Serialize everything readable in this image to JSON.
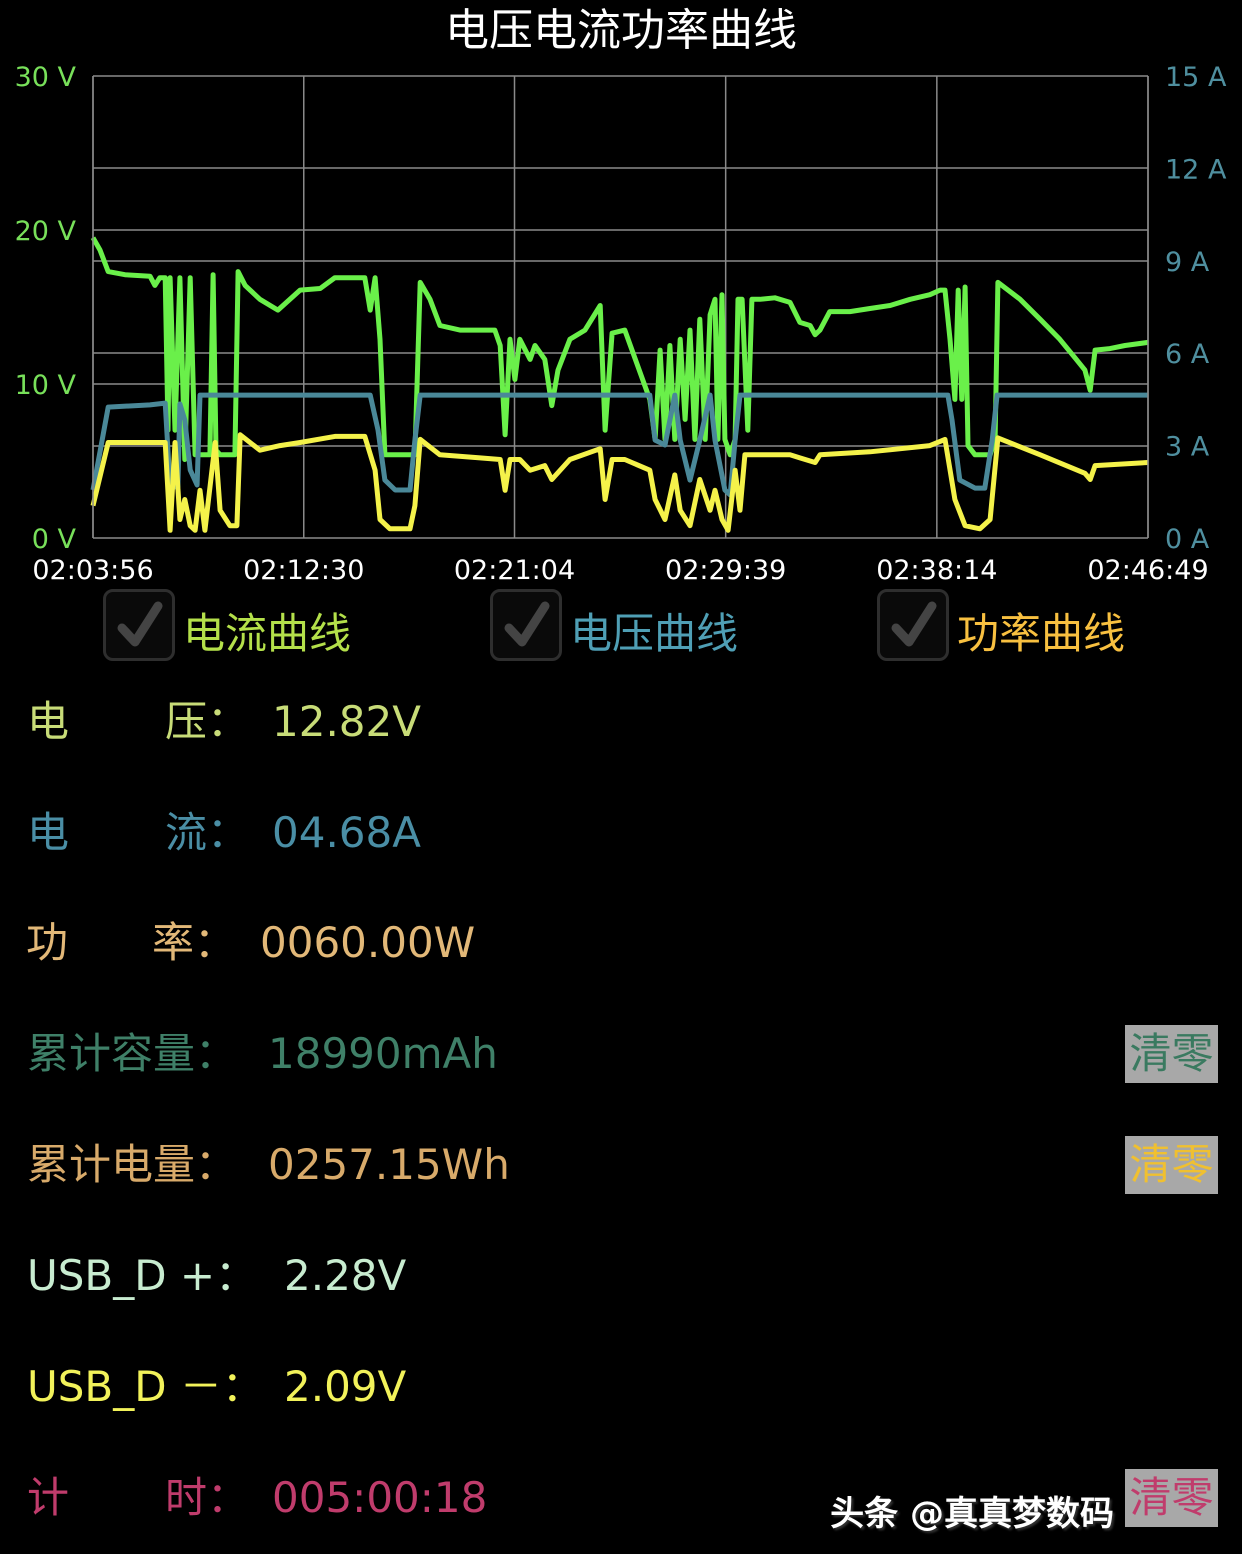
{
  "title": "电压电流功率曲线",
  "colors": {
    "green_series": "#6af04a",
    "teal_series": "#4a8898",
    "yellow_series": "#f4f24a",
    "left_axis": "#78e05a",
    "right_axis": "#4f8f9f",
    "grid": "#8a8a8a"
  },
  "chart_data": {
    "type": "line",
    "title": "电压电流功率曲线",
    "x_ticks": [
      "02:03:56",
      "02:12:30",
      "02:21:04",
      "02:29:39",
      "02:38:14",
      "02:46:49"
    ],
    "xlim": [
      "02:03:56",
      "02:46:49"
    ],
    "left_axis": {
      "ticks": [
        "30 V",
        "20 V",
        "10 V",
        "0 V"
      ],
      "ylim": [
        0,
        30
      ]
    },
    "right_axis": {
      "ticks": [
        "15 A",
        "12 A",
        "9 A",
        "6 A",
        "3 A",
        "0 A"
      ],
      "ylim": [
        0,
        15
      ]
    },
    "grid": true,
    "series": [
      {
        "color": "green",
        "axis": "left",
        "points": [
          [
            "02:03:56",
            19.5
          ],
          [
            "02:04:13",
            18.7
          ],
          [
            "02:04:33",
            17.3
          ],
          [
            "02:05:14",
            17.1
          ],
          [
            "02:06:15",
            17.0
          ],
          [
            "02:06:27",
            16.4
          ],
          [
            "02:06:39",
            16.9
          ],
          [
            "02:06:52",
            16.9
          ],
          [
            "02:06:59",
            7.0
          ],
          [
            "02:07:04",
            16.9
          ],
          [
            "02:07:16",
            7.0
          ],
          [
            "02:07:28",
            16.9
          ],
          [
            "02:07:40",
            5.1
          ],
          [
            "02:07:53",
            16.9
          ],
          [
            "02:08:05",
            5.4
          ],
          [
            "02:08:41",
            5.4
          ],
          [
            "02:08:49",
            17.1
          ],
          [
            "02:08:56",
            5.7
          ],
          [
            "02:09:06",
            5.4
          ],
          [
            "02:09:42",
            5.4
          ],
          [
            "02:09:50",
            17.3
          ],
          [
            "02:10:07",
            16.4
          ],
          [
            "02:10:43",
            15.5
          ],
          [
            "02:11:27",
            14.8
          ],
          [
            "02:12:21",
            16.1
          ],
          [
            "02:13:10",
            16.2
          ],
          [
            "02:13:46",
            16.9
          ],
          [
            "02:14:59",
            16.9
          ],
          [
            "02:15:12",
            14.8
          ],
          [
            "02:15:24",
            16.9
          ],
          [
            "02:15:36",
            12.9
          ],
          [
            "02:15:48",
            5.4
          ],
          [
            "02:17:01",
            5.4
          ],
          [
            "02:17:14",
            16.6
          ],
          [
            "02:17:38",
            15.5
          ],
          [
            "02:18:02",
            13.8
          ],
          [
            "02:18:51",
            13.5
          ],
          [
            "02:20:16",
            13.5
          ],
          [
            "02:20:29",
            12.5
          ],
          [
            "02:20:41",
            6.7
          ],
          [
            "02:20:53",
            12.9
          ],
          [
            "02:21:05",
            10.3
          ],
          [
            "02:21:17",
            12.9
          ],
          [
            "02:21:42",
            11.6
          ],
          [
            "02:21:54",
            12.5
          ],
          [
            "02:22:18",
            11.6
          ],
          [
            "02:22:35",
            8.6
          ],
          [
            "02:22:50",
            10.9
          ],
          [
            "02:23:19",
            12.9
          ],
          [
            "02:23:56",
            13.5
          ],
          [
            "02:24:33",
            15.1
          ],
          [
            "02:24:45",
            7.0
          ],
          [
            "02:25:02",
            13.3
          ],
          [
            "02:25:33",
            13.5
          ],
          [
            "02:26:34",
            9.0
          ],
          [
            "02:26:47",
            6.4
          ],
          [
            "02:26:59",
            12.2
          ],
          [
            "02:27:11",
            6.4
          ],
          [
            "02:27:23",
            12.5
          ],
          [
            "02:27:35",
            6.4
          ],
          [
            "02:27:48",
            12.9
          ],
          [
            "02:28:00",
            7.7
          ],
          [
            "02:28:12",
            13.5
          ],
          [
            "02:28:24",
            6.4
          ],
          [
            "02:28:36",
            14.2
          ],
          [
            "02:28:49",
            6.4
          ],
          [
            "02:29:01",
            14.5
          ],
          [
            "02:29:13",
            15.5
          ],
          [
            "02:29:20",
            6.4
          ],
          [
            "02:29:30",
            15.8
          ],
          [
            "02:29:37",
            6.4
          ],
          [
            "02:29:50",
            5.4
          ],
          [
            "02:30:02",
            6.4
          ],
          [
            "02:30:09",
            15.5
          ],
          [
            "02:30:19",
            15.5
          ],
          [
            "02:30:33",
            7.0
          ],
          [
            "02:30:43",
            15.5
          ],
          [
            "02:31:03",
            15.5
          ],
          [
            "02:31:39",
            15.6
          ],
          [
            "02:32:16",
            15.3
          ],
          [
            "02:32:40",
            14.0
          ],
          [
            "02:33:05",
            13.8
          ],
          [
            "02:33:17",
            13.2
          ],
          [
            "02:33:29",
            13.5
          ],
          [
            "02:33:53",
            14.7
          ],
          [
            "02:34:42",
            14.7
          ],
          [
            "02:35:31",
            14.9
          ],
          [
            "02:36:20",
            15.1
          ],
          [
            "02:37:09",
            15.5
          ],
          [
            "02:37:57",
            15.8
          ],
          [
            "02:38:22",
            16.1
          ],
          [
            "02:38:34",
            16.1
          ],
          [
            "02:38:46",
            12.9
          ],
          [
            "02:38:58",
            9.0
          ],
          [
            "02:39:06",
            16.1
          ],
          [
            "02:39:15",
            9.0
          ],
          [
            "02:39:23",
            16.3
          ],
          [
            "02:39:30",
            6.0
          ],
          [
            "02:39:47",
            5.4
          ],
          [
            "02:40:24",
            5.4
          ],
          [
            "02:40:36",
            6.4
          ],
          [
            "02:40:43",
            16.6
          ],
          [
            "02:41:37",
            15.5
          ],
          [
            "02:42:26",
            14.2
          ],
          [
            "02:43:14",
            12.9
          ],
          [
            "02:43:51",
            11.7
          ],
          [
            "02:44:15",
            10.9
          ],
          [
            "02:44:28",
            9.6
          ],
          [
            "02:44:40",
            12.2
          ],
          [
            "02:45:16",
            12.3
          ],
          [
            "02:45:53",
            12.5
          ],
          [
            "02:46:49",
            12.7
          ]
        ]
      },
      {
        "color": "teal",
        "axis": "right",
        "points": [
          [
            "02:03:56",
            1.56
          ],
          [
            "02:04:33",
            4.25
          ],
          [
            "02:06:15",
            4.32
          ],
          [
            "02:06:52",
            4.38
          ],
          [
            "02:07:04",
            1.66
          ],
          [
            "02:07:23",
            1.66
          ],
          [
            "02:07:28",
            4.35
          ],
          [
            "02:07:40",
            3.83
          ],
          [
            "02:07:53",
            2.21
          ],
          [
            "02:08:10",
            1.72
          ],
          [
            "02:08:17",
            4.64
          ],
          [
            "02:15:12",
            4.64
          ],
          [
            "02:15:31",
            3.51
          ],
          [
            "02:15:48",
            1.88
          ],
          [
            "02:16:13",
            1.56
          ],
          [
            "02:16:49",
            1.56
          ],
          [
            "02:17:01",
            3.18
          ],
          [
            "02:17:14",
            4.64
          ],
          [
            "02:26:34",
            4.64
          ],
          [
            "02:26:47",
            3.18
          ],
          [
            "02:27:11",
            3.02
          ],
          [
            "02:27:35",
            4.64
          ],
          [
            "02:27:48",
            3.18
          ],
          [
            "02:28:12",
            1.88
          ],
          [
            "02:28:36",
            3.18
          ],
          [
            "02:29:01",
            4.64
          ],
          [
            "02:29:13",
            3.18
          ],
          [
            "02:29:37",
            1.56
          ],
          [
            "02:29:50",
            1.4
          ],
          [
            "02:30:02",
            3.18
          ],
          [
            "02:30:14",
            4.64
          ],
          [
            "02:38:41",
            4.64
          ],
          [
            "02:38:51",
            3.83
          ],
          [
            "02:39:10",
            1.88
          ],
          [
            "02:39:47",
            1.62
          ],
          [
            "02:40:11",
            1.62
          ],
          [
            "02:40:29",
            3.18
          ],
          [
            "02:40:41",
            4.64
          ],
          [
            "02:46:49",
            4.64
          ]
        ]
      },
      {
        "color": "yellow",
        "axis": "left",
        "points": [
          [
            "02:03:56",
            2.1
          ],
          [
            "02:04:33",
            6.2
          ],
          [
            "02:06:52",
            6.2
          ],
          [
            "02:07:04",
            0.5
          ],
          [
            "02:07:16",
            6.2
          ],
          [
            "02:07:28",
            1.2
          ],
          [
            "02:07:40",
            2.5
          ],
          [
            "02:07:53",
            0.8
          ],
          [
            "02:08:05",
            0.5
          ],
          [
            "02:08:17",
            3.1
          ],
          [
            "02:08:29",
            0.5
          ],
          [
            "02:08:54",
            6.2
          ],
          [
            "02:09:06",
            1.8
          ],
          [
            "02:09:30",
            0.8
          ],
          [
            "02:09:47",
            0.8
          ],
          [
            "02:09:55",
            6.7
          ],
          [
            "02:10:43",
            5.7
          ],
          [
            "02:11:32",
            6.0
          ],
          [
            "02:12:21",
            6.2
          ],
          [
            "02:13:46",
            6.6
          ],
          [
            "02:14:59",
            6.6
          ],
          [
            "02:15:24",
            4.4
          ],
          [
            "02:15:36",
            1.2
          ],
          [
            "02:16:00",
            0.6
          ],
          [
            "02:16:49",
            0.6
          ],
          [
            "02:17:01",
            2.1
          ],
          [
            "02:17:14",
            6.4
          ],
          [
            "02:18:02",
            5.4
          ],
          [
            "02:19:40",
            5.2
          ],
          [
            "02:20:29",
            5.1
          ],
          [
            "02:20:41",
            3.1
          ],
          [
            "02:20:53",
            5.1
          ],
          [
            "02:21:17",
            5.1
          ],
          [
            "02:21:42",
            4.4
          ],
          [
            "02:22:18",
            4.7
          ],
          [
            "02:22:35",
            3.8
          ],
          [
            "02:23:19",
            5.1
          ],
          [
            "02:24:33",
            5.8
          ],
          [
            "02:24:45",
            2.5
          ],
          [
            "02:25:02",
            5.1
          ],
          [
            "02:25:33",
            5.1
          ],
          [
            "02:26:34",
            4.4
          ],
          [
            "02:26:47",
            2.5
          ],
          [
            "02:27:11",
            1.2
          ],
          [
            "02:27:35",
            4.1
          ],
          [
            "02:27:48",
            1.8
          ],
          [
            "02:28:12",
            0.8
          ],
          [
            "02:28:36",
            3.8
          ],
          [
            "02:29:01",
            1.8
          ],
          [
            "02:29:13",
            3.1
          ],
          [
            "02:29:30",
            1.2
          ],
          [
            "02:29:45",
            0.5
          ],
          [
            "02:30:02",
            4.4
          ],
          [
            "02:30:14",
            1.8
          ],
          [
            "02:30:26",
            5.4
          ],
          [
            "02:32:16",
            5.4
          ],
          [
            "02:32:40",
            5.2
          ],
          [
            "02:33:17",
            4.9
          ],
          [
            "02:33:29",
            5.4
          ],
          [
            "02:35:31",
            5.6
          ],
          [
            "02:37:57",
            6.0
          ],
          [
            "02:38:34",
            6.4
          ],
          [
            "02:38:58",
            2.5
          ],
          [
            "02:39:23",
            0.8
          ],
          [
            "02:39:59",
            0.6
          ],
          [
            "02:40:24",
            1.2
          ],
          [
            "02:40:43",
            6.5
          ],
          [
            "02:42:26",
            5.4
          ],
          [
            "02:44:15",
            4.2
          ],
          [
            "02:44:28",
            3.8
          ],
          [
            "02:44:40",
            4.7
          ],
          [
            "02:46:49",
            4.9
          ]
        ]
      }
    ]
  },
  "legend": [
    {
      "label": "电流曲线",
      "checked": true,
      "color": "#b4e04a"
    },
    {
      "label": "电压曲线",
      "checked": true,
      "color": "#4f9fb5"
    },
    {
      "label": "功率曲线",
      "checked": true,
      "color": "#f8c040"
    }
  ],
  "readings": [
    {
      "label_a": "电",
      "label_b": "压：",
      "value": "12.82V",
      "color": "#c8dc78"
    },
    {
      "label_a": "电",
      "label_b": "流：",
      "value": "04.68A",
      "color": "#4a8ea5"
    },
    {
      "label_a": "功",
      "label_b": "率：",
      "value": "0060.00W",
      "color": "#e2b878"
    },
    {
      "label_a": "累计容量：",
      "label_b": "",
      "value": "18990mAh",
      "color": "#3f8068",
      "reset": "清零",
      "reset_color": "#3a7a60"
    },
    {
      "label_a": "累计电量：",
      "label_b": "",
      "value": "0257.15Wh",
      "color": "#d8aa6a",
      "reset": "清零",
      "reset_color": "#f0c030"
    },
    {
      "label_a": "USB_D +：",
      "label_b": "",
      "value": "2.28V",
      "color": "#c8ecd0"
    },
    {
      "label_a": "USB_D －：",
      "label_b": "",
      "value": "2.09V",
      "color": "#f2f25a"
    },
    {
      "label_a": "计",
      "label_b": "时：",
      "value": "005:00:18",
      "color": "#c03c6c",
      "reset": "清零",
      "reset_color": "#c03c6c"
    }
  ],
  "watermark": "头条 @真真梦数码"
}
